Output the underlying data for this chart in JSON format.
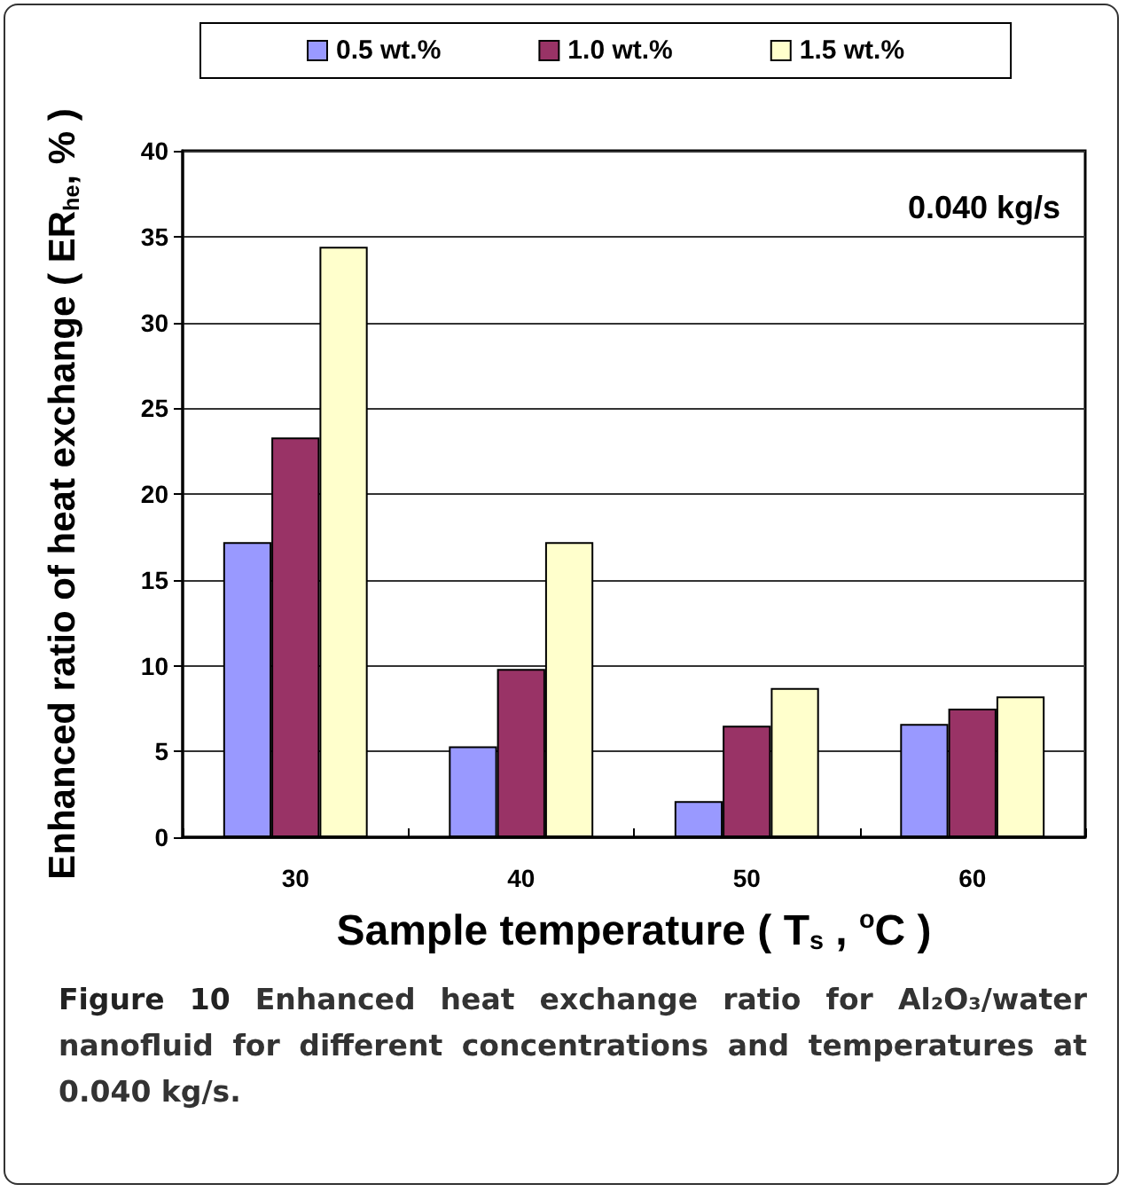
{
  "chart_data": {
    "type": "bar",
    "categories": [
      "30",
      "40",
      "50",
      "60"
    ],
    "series": [
      {
        "name": "0.5 wt.%",
        "color": "#9999ff",
        "values": [
          17.2,
          5.3,
          2.1,
          6.6
        ]
      },
      {
        "name": "1.0 wt.%",
        "color": "#993366",
        "values": [
          23.3,
          9.8,
          6.5,
          7.5
        ]
      },
      {
        "name": "1.5 wt.%",
        "color": "#ffffcc",
        "values": [
          34.4,
          17.2,
          8.7,
          8.2
        ]
      }
    ],
    "xlabel": "Sample temperature ( T$_{s}$ , $^{o}$C )",
    "ylabel": "Enhanced ratio of heat exchange ( ER$_{he}$, % )",
    "ylim": [
      0,
      40
    ],
    "yticks": [
      0,
      5,
      10,
      15,
      20,
      25,
      30,
      35,
      40
    ],
    "grid": "y",
    "legend": "top",
    "annotations": [
      "0.040 kg/s",
      "Figure 10 Enhanced heat exchange ratio for Al₂O₃/water nanofluid for different concentrations and temperatures at 0.040 kg/s."
    ]
  }
}
